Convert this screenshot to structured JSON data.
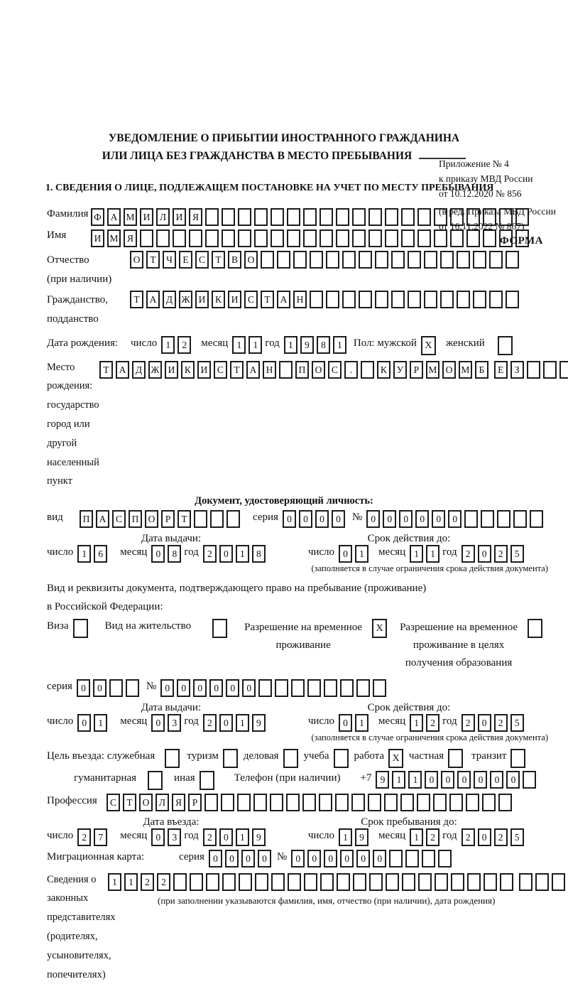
{
  "header": {
    "appendix_lines": [
      "Приложение № 4",
      "к приказу МВД России",
      "от 10.12.2020 № 856"
    ],
    "edition_lines": [
      "(в ред. Приказа МВД России",
      "от 16.11.2022 № 867)"
    ],
    "forma": "ФОРМА"
  },
  "title": {
    "line1": "УВЕДОМЛЕНИЕ О ПРИБЫТИИ ИНОСТРАННОГО ГРАЖДАНИНА",
    "line2": "ИЛИ ЛИЦА БЕЗ ГРАЖДАНСТВА В МЕСТО ПРЕБЫВАНИЯ"
  },
  "section1_heading": "1. СВЕДЕНИЯ О ЛИЦЕ, ПОДЛЕЖАЩЕМ ПОСТАНОВКЕ НА УЧЕТ ПО МЕСТУ ПРЕБЫВАНИЯ",
  "labels": {
    "surname": "Фамилия",
    "name": "Имя",
    "patronymic": "Отчество",
    "patronymic_note": "(при наличии)",
    "citizenship1": "Гражданство,",
    "citizenship2": "подданство",
    "birth_date": "Дата рождения:",
    "day": "число",
    "month": "месяц",
    "year": "год",
    "sex_male": "Пол: мужской",
    "sex_female": "женский",
    "birthplace1": "Место рождения:",
    "birthplace2": "государство",
    "birthplace3": "город или другой",
    "birthplace4": "населенный пункт",
    "identity_doc_heading": "Документ, удостоверяющий личность:",
    "doc_type": "вид",
    "seria": "серия",
    "number_sign": "№",
    "issue_date": "Дата выдачи:",
    "valid_until": "Срок действия до:",
    "valid_note": "(заполняется в случае ограничения срока действия документа)",
    "right_doc_line1": "Вид и реквизиты документа, подтверждающего право на пребывание (проживание)",
    "right_doc_line2": "в Российской Федерации:",
    "visa": "Виза",
    "residence_permit": "Вид на жительство",
    "temp_res1": "Разрешение на временное",
    "temp_res2": "проживание",
    "temp_edu1": "Разрешение на временное",
    "temp_edu2": "проживание в целях",
    "temp_edu3": "получения образования",
    "purpose": "Цель въезда: служебная",
    "tourism": "туризм",
    "business": "деловая",
    "study": "учеба",
    "work": "работа",
    "private": "частная",
    "transit": "транзит",
    "humanitarian": "гуманитарная",
    "other": "иная",
    "phone": "Телефон (при наличии)",
    "phone_prefix": "+7",
    "profession": "Профессия",
    "entry_date": "Дата въезда:",
    "stay_until": "Срок пребывания до:",
    "migration_card": "Миграционная карта:",
    "representatives1": "Сведения о",
    "representatives2": "законных",
    "representatives3": "представителях",
    "representatives4": "(родителях,",
    "representatives5": "усыновителях,",
    "representatives6": "попечителях)",
    "representatives_note": "(при заполнении указываются фамилия, имя, отчество (при наличии), дата рождения)"
  },
  "cell_fields": {
    "surname": {
      "value": "ФАМИЛИЯ",
      "count": 27
    },
    "given_name": {
      "value": "ИМЯ",
      "count": 27
    },
    "patronymic": {
      "value": "ОТЧЕСТВО",
      "count": 24
    },
    "citizenship": {
      "value": "ТАДЖИКИСТАН",
      "count": 24
    },
    "birth_day": {
      "value": "12",
      "count": 2
    },
    "birth_month": {
      "value": "11",
      "count": 2
    },
    "birth_year": {
      "value": "1981",
      "count": 4
    },
    "sex_male_box": {
      "value": "X",
      "count": 1
    },
    "sex_female_box": {
      "value": "",
      "count": 1
    },
    "birthplace_row1": {
      "value": "ТАДЖИКИСТАН ПОС. КУРМОМБ",
      "count": 24
    },
    "birthplace_row2": {
      "value": "ЕЗ",
      "count": 24
    },
    "birthplace_row3": {
      "value": "",
      "count": 24
    },
    "doc_type": {
      "value": "ПАСПОРТ",
      "count": 10
    },
    "doc_seria": {
      "value": "0000",
      "count": 4
    },
    "doc_number": {
      "value": "000000",
      "count": 11
    },
    "doc_issue_day": {
      "value": "16",
      "count": 2
    },
    "doc_issue_month": {
      "value": "08",
      "count": 2
    },
    "doc_issue_year": {
      "value": "2018",
      "count": 4
    },
    "doc_valid_day": {
      "value": "01",
      "count": 2
    },
    "doc_valid_month": {
      "value": "11",
      "count": 2
    },
    "doc_valid_year": {
      "value": "2025",
      "count": 4
    },
    "visa_box": {
      "value": "",
      "count": 1
    },
    "residence_permit_box": {
      "value": "",
      "count": 1
    },
    "temp_residence_box": {
      "value": "X",
      "count": 1
    },
    "temp_residence_edu_box": {
      "value": "",
      "count": 1
    },
    "permit_seria": {
      "value": "00",
      "count": 4
    },
    "permit_number": {
      "value": "000000",
      "count": 14
    },
    "permit_issue_day": {
      "value": "01",
      "count": 2
    },
    "permit_issue_month": {
      "value": "03",
      "count": 2
    },
    "permit_issue_year": {
      "value": "2019",
      "count": 4
    },
    "permit_valid_day": {
      "value": "01",
      "count": 2
    },
    "permit_valid_month": {
      "value": "12",
      "count": 2
    },
    "permit_valid_year": {
      "value": "2025",
      "count": 4
    },
    "purpose_official_box": {
      "value": "",
      "count": 1
    },
    "purpose_tourism_box": {
      "value": "",
      "count": 1
    },
    "purpose_business_box": {
      "value": "",
      "count": 1
    },
    "purpose_study_box": {
      "value": "",
      "count": 1
    },
    "purpose_work_box": {
      "value": "X",
      "count": 1
    },
    "purpose_private_box": {
      "value": "",
      "count": 1
    },
    "purpose_transit_box": {
      "value": "",
      "count": 1
    },
    "purpose_humanitarian_box": {
      "value": "",
      "count": 1
    },
    "purpose_other_box": {
      "value": "",
      "count": 1
    },
    "phone": {
      "value": "911000000",
      "count": 10
    },
    "profession": {
      "value": "СТОЛЯР",
      "count": 25
    },
    "entry_day": {
      "value": "27",
      "count": 2
    },
    "entry_month": {
      "value": "03",
      "count": 2
    },
    "entry_year": {
      "value": "2019",
      "count": 4
    },
    "stay_day": {
      "value": "19",
      "count": 2
    },
    "stay_month": {
      "value": "12",
      "count": 2
    },
    "stay_year": {
      "value": "2025",
      "count": 4
    },
    "migcard_seria": {
      "value": "0000",
      "count": 4
    },
    "migcard_number": {
      "value": "000000",
      "count": 10
    },
    "representatives_row1": {
      "value": "1122",
      "count": 25
    },
    "representatives_row2": {
      "value": "",
      "count": 25
    },
    "representatives_row3": {
      "value": "",
      "count": 25
    }
  }
}
